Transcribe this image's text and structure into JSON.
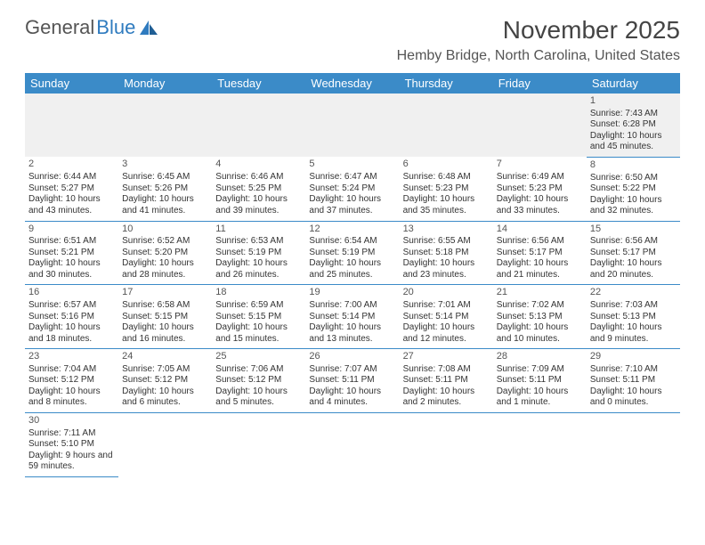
{
  "brand": {
    "part1": "General",
    "part2": "Blue"
  },
  "title": "November 2025",
  "location": "Hemby Bridge, North Carolina, United States",
  "day_headers": [
    "Sunday",
    "Monday",
    "Tuesday",
    "Wednesday",
    "Thursday",
    "Friday",
    "Saturday"
  ],
  "colors": {
    "header_bg": "#3b8bc8",
    "header_text": "#ffffff",
    "cell_border": "#3b8bc8",
    "first_row_bg": "#f0f0f0",
    "title_color": "#444444",
    "text_color": "#333333"
  },
  "weeks": [
    [
      null,
      null,
      null,
      null,
      null,
      null,
      {
        "n": "1",
        "sunrise": "Sunrise: 7:43 AM",
        "sunset": "Sunset: 6:28 PM",
        "daylight": "Daylight: 10 hours and 45 minutes."
      }
    ],
    [
      {
        "n": "2",
        "sunrise": "Sunrise: 6:44 AM",
        "sunset": "Sunset: 5:27 PM",
        "daylight": "Daylight: 10 hours and 43 minutes."
      },
      {
        "n": "3",
        "sunrise": "Sunrise: 6:45 AM",
        "sunset": "Sunset: 5:26 PM",
        "daylight": "Daylight: 10 hours and 41 minutes."
      },
      {
        "n": "4",
        "sunrise": "Sunrise: 6:46 AM",
        "sunset": "Sunset: 5:25 PM",
        "daylight": "Daylight: 10 hours and 39 minutes."
      },
      {
        "n": "5",
        "sunrise": "Sunrise: 6:47 AM",
        "sunset": "Sunset: 5:24 PM",
        "daylight": "Daylight: 10 hours and 37 minutes."
      },
      {
        "n": "6",
        "sunrise": "Sunrise: 6:48 AM",
        "sunset": "Sunset: 5:23 PM",
        "daylight": "Daylight: 10 hours and 35 minutes."
      },
      {
        "n": "7",
        "sunrise": "Sunrise: 6:49 AM",
        "sunset": "Sunset: 5:23 PM",
        "daylight": "Daylight: 10 hours and 33 minutes."
      },
      {
        "n": "8",
        "sunrise": "Sunrise: 6:50 AM",
        "sunset": "Sunset: 5:22 PM",
        "daylight": "Daylight: 10 hours and 32 minutes."
      }
    ],
    [
      {
        "n": "9",
        "sunrise": "Sunrise: 6:51 AM",
        "sunset": "Sunset: 5:21 PM",
        "daylight": "Daylight: 10 hours and 30 minutes."
      },
      {
        "n": "10",
        "sunrise": "Sunrise: 6:52 AM",
        "sunset": "Sunset: 5:20 PM",
        "daylight": "Daylight: 10 hours and 28 minutes."
      },
      {
        "n": "11",
        "sunrise": "Sunrise: 6:53 AM",
        "sunset": "Sunset: 5:19 PM",
        "daylight": "Daylight: 10 hours and 26 minutes."
      },
      {
        "n": "12",
        "sunrise": "Sunrise: 6:54 AM",
        "sunset": "Sunset: 5:19 PM",
        "daylight": "Daylight: 10 hours and 25 minutes."
      },
      {
        "n": "13",
        "sunrise": "Sunrise: 6:55 AM",
        "sunset": "Sunset: 5:18 PM",
        "daylight": "Daylight: 10 hours and 23 minutes."
      },
      {
        "n": "14",
        "sunrise": "Sunrise: 6:56 AM",
        "sunset": "Sunset: 5:17 PM",
        "daylight": "Daylight: 10 hours and 21 minutes."
      },
      {
        "n": "15",
        "sunrise": "Sunrise: 6:56 AM",
        "sunset": "Sunset: 5:17 PM",
        "daylight": "Daylight: 10 hours and 20 minutes."
      }
    ],
    [
      {
        "n": "16",
        "sunrise": "Sunrise: 6:57 AM",
        "sunset": "Sunset: 5:16 PM",
        "daylight": "Daylight: 10 hours and 18 minutes."
      },
      {
        "n": "17",
        "sunrise": "Sunrise: 6:58 AM",
        "sunset": "Sunset: 5:15 PM",
        "daylight": "Daylight: 10 hours and 16 minutes."
      },
      {
        "n": "18",
        "sunrise": "Sunrise: 6:59 AM",
        "sunset": "Sunset: 5:15 PM",
        "daylight": "Daylight: 10 hours and 15 minutes."
      },
      {
        "n": "19",
        "sunrise": "Sunrise: 7:00 AM",
        "sunset": "Sunset: 5:14 PM",
        "daylight": "Daylight: 10 hours and 13 minutes."
      },
      {
        "n": "20",
        "sunrise": "Sunrise: 7:01 AM",
        "sunset": "Sunset: 5:14 PM",
        "daylight": "Daylight: 10 hours and 12 minutes."
      },
      {
        "n": "21",
        "sunrise": "Sunrise: 7:02 AM",
        "sunset": "Sunset: 5:13 PM",
        "daylight": "Daylight: 10 hours and 10 minutes."
      },
      {
        "n": "22",
        "sunrise": "Sunrise: 7:03 AM",
        "sunset": "Sunset: 5:13 PM",
        "daylight": "Daylight: 10 hours and 9 minutes."
      }
    ],
    [
      {
        "n": "23",
        "sunrise": "Sunrise: 7:04 AM",
        "sunset": "Sunset: 5:12 PM",
        "daylight": "Daylight: 10 hours and 8 minutes."
      },
      {
        "n": "24",
        "sunrise": "Sunrise: 7:05 AM",
        "sunset": "Sunset: 5:12 PM",
        "daylight": "Daylight: 10 hours and 6 minutes."
      },
      {
        "n": "25",
        "sunrise": "Sunrise: 7:06 AM",
        "sunset": "Sunset: 5:12 PM",
        "daylight": "Daylight: 10 hours and 5 minutes."
      },
      {
        "n": "26",
        "sunrise": "Sunrise: 7:07 AM",
        "sunset": "Sunset: 5:11 PM",
        "daylight": "Daylight: 10 hours and 4 minutes."
      },
      {
        "n": "27",
        "sunrise": "Sunrise: 7:08 AM",
        "sunset": "Sunset: 5:11 PM",
        "daylight": "Daylight: 10 hours and 2 minutes."
      },
      {
        "n": "28",
        "sunrise": "Sunrise: 7:09 AM",
        "sunset": "Sunset: 5:11 PM",
        "daylight": "Daylight: 10 hours and 1 minute."
      },
      {
        "n": "29",
        "sunrise": "Sunrise: 7:10 AM",
        "sunset": "Sunset: 5:11 PM",
        "daylight": "Daylight: 10 hours and 0 minutes."
      }
    ],
    [
      {
        "n": "30",
        "sunrise": "Sunrise: 7:11 AM",
        "sunset": "Sunset: 5:10 PM",
        "daylight": "Daylight: 9 hours and 59 minutes."
      },
      null,
      null,
      null,
      null,
      null,
      null
    ]
  ]
}
